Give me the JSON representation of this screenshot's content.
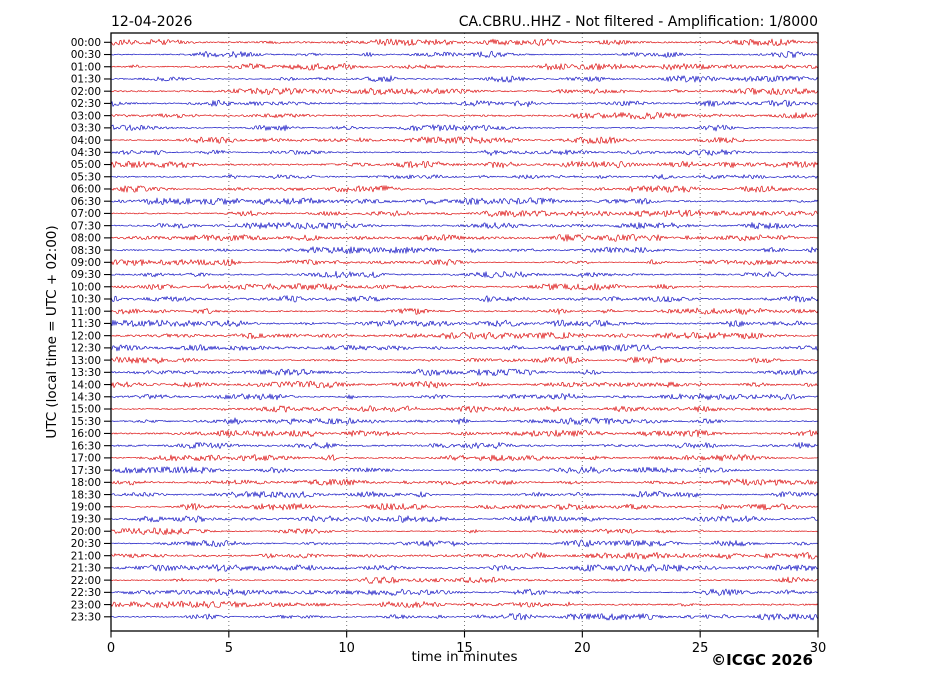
{
  "header": {
    "date_title": "12-04-2026",
    "station_title": "CA.CBRU..HHZ - Not filtered - Amplification: 1/8000"
  },
  "axes": {
    "y_label": "UTC (local time = UTC + 02:00)",
    "x_label": "time in minutes",
    "x_ticks": [
      0,
      5,
      10,
      15,
      20,
      25,
      30
    ],
    "x_min": 0,
    "x_max": 30,
    "grid_minutes": [
      5,
      10,
      15,
      20,
      25
    ]
  },
  "footer": {
    "copyright": "©ICGC 2026"
  },
  "chart_data": {
    "type": "line",
    "subtype": "helicorder_daily_seismogram",
    "title_left": "12-04-2026",
    "title_right": "CA.CBRU..HHZ - Not filtered - Amplification: 1/8000",
    "station": "CA.CBRU..HHZ",
    "processing": "Not filtered",
    "amplification": "1/8000",
    "xlabel": "time in minutes",
    "ylabel": "UTC (local time = UTC + 02:00)",
    "x_range": [
      0,
      30
    ],
    "x_ticks": [
      0,
      5,
      10,
      15,
      20,
      25,
      30
    ],
    "grid": "vertical dotted lines every 5 minutes",
    "legend": "none",
    "row_count": 48,
    "minutes_per_row": 30,
    "waveform": "continuous unlabeled ambient seismic noise per 30-minute row, alternating trace colors",
    "palette": {
      "red": "#dd1414",
      "blue": "#1717c4",
      "grid": "#777777",
      "frame": "#000000"
    },
    "rows": [
      {
        "t": "00:00",
        "c": "red"
      },
      {
        "t": "00:30",
        "c": "blue"
      },
      {
        "t": "01:00",
        "c": "red"
      },
      {
        "t": "01:30",
        "c": "blue"
      },
      {
        "t": "02:00",
        "c": "red"
      },
      {
        "t": "02:30",
        "c": "blue"
      },
      {
        "t": "03:00",
        "c": "red"
      },
      {
        "t": "03:30",
        "c": "blue"
      },
      {
        "t": "04:00",
        "c": "red"
      },
      {
        "t": "04:30",
        "c": "blue"
      },
      {
        "t": "05:00",
        "c": "red"
      },
      {
        "t": "05:30",
        "c": "blue"
      },
      {
        "t": "06:00",
        "c": "red"
      },
      {
        "t": "06:30",
        "c": "blue"
      },
      {
        "t": "07:00",
        "c": "red"
      },
      {
        "t": "07:30",
        "c": "blue"
      },
      {
        "t": "08:00",
        "c": "red"
      },
      {
        "t": "08:30",
        "c": "blue"
      },
      {
        "t": "09:00",
        "c": "red"
      },
      {
        "t": "09:30",
        "c": "blue"
      },
      {
        "t": "10:00",
        "c": "red"
      },
      {
        "t": "10:30",
        "c": "blue"
      },
      {
        "t": "11:00",
        "c": "red"
      },
      {
        "t": "11:30",
        "c": "blue"
      },
      {
        "t": "12:00",
        "c": "red"
      },
      {
        "t": "12:30",
        "c": "blue"
      },
      {
        "t": "13:00",
        "c": "red"
      },
      {
        "t": "13:30",
        "c": "blue"
      },
      {
        "t": "14:00",
        "c": "red"
      },
      {
        "t": "14:30",
        "c": "blue"
      },
      {
        "t": "15:00",
        "c": "red"
      },
      {
        "t": "15:30",
        "c": "blue"
      },
      {
        "t": "16:00",
        "c": "red"
      },
      {
        "t": "16:30",
        "c": "blue"
      },
      {
        "t": "17:00",
        "c": "red"
      },
      {
        "t": "17:30",
        "c": "blue"
      },
      {
        "t": "18:00",
        "c": "red"
      },
      {
        "t": "18:30",
        "c": "blue"
      },
      {
        "t": "19:00",
        "c": "red"
      },
      {
        "t": "19:30",
        "c": "blue"
      },
      {
        "t": "20:00",
        "c": "red"
      },
      {
        "t": "20:30",
        "c": "blue"
      },
      {
        "t": "21:00",
        "c": "red"
      },
      {
        "t": "21:30",
        "c": "blue"
      },
      {
        "t": "22:00",
        "c": "red"
      },
      {
        "t": "22:30",
        "c": "blue"
      },
      {
        "t": "23:00",
        "c": "red"
      },
      {
        "t": "23:30",
        "c": "blue"
      }
    ]
  }
}
